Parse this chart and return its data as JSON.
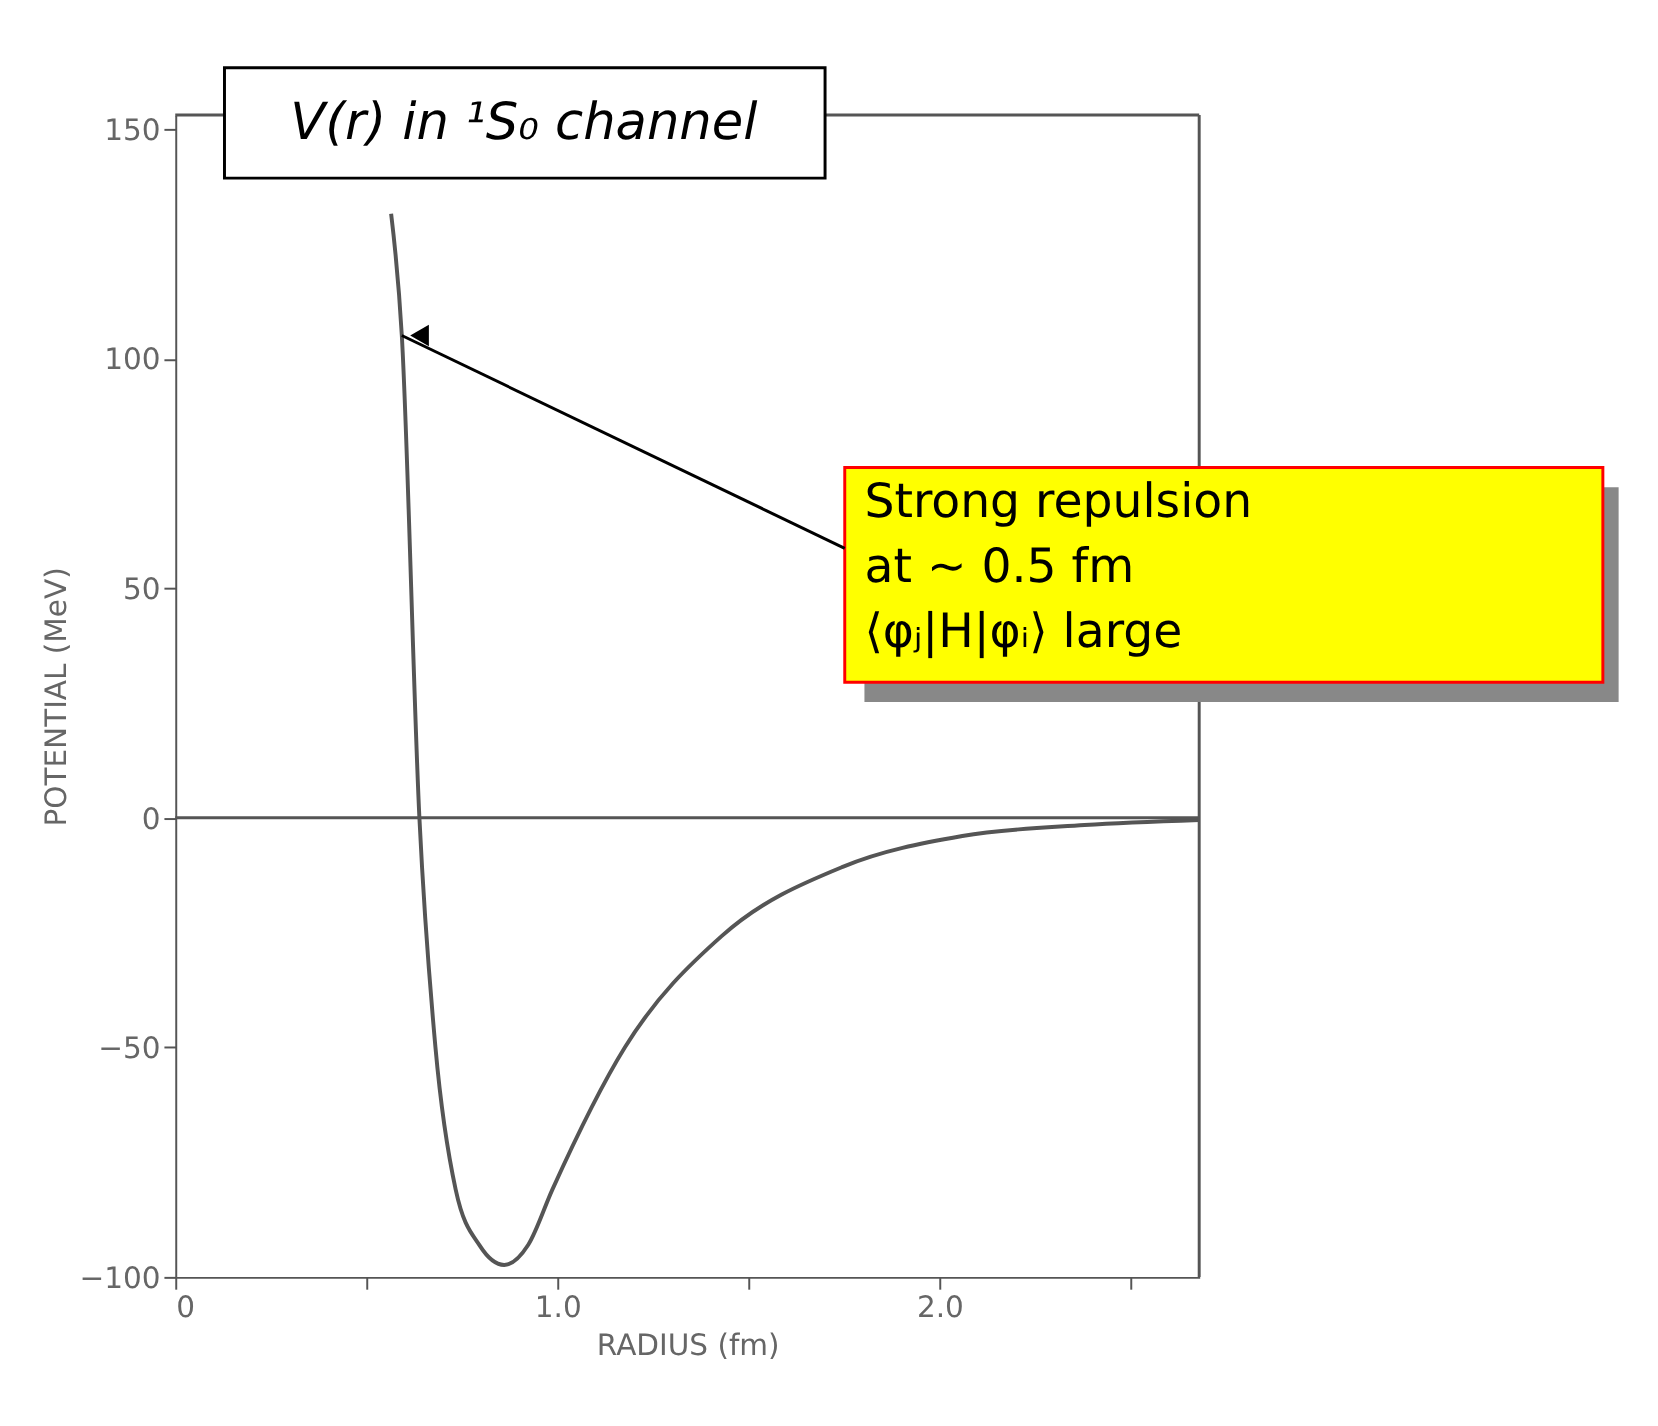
{
  "chart_data": {
    "type": "line",
    "title": "V(r) in ¹S₀ channel",
    "xlabel": "RADIUS (fm)",
    "ylabel": "POTENTIAL (MeV)",
    "x": [
      0.565,
      0.593,
      0.639,
      0.681,
      0.734,
      0.797,
      0.861,
      0.924,
      0.987,
      1.177,
      1.43,
      1.747,
      2.06,
      2.38,
      2.68
    ],
    "series": [
      {
        "color": "#555555",
        "values": [
          131.5,
          105,
          0,
          -50,
          -81,
          -93.2,
          -97.4,
          -93,
          -81,
          -50,
          -25.8,
          -10.7,
          -4,
          -1.6,
          -0.5
        ]
      }
    ],
    "xlim": [
      0,
      2.68
    ],
    "xticks": [
      0,
      {
        "value": 0.5,
        "label": null
      },
      {
        "value": 1,
        "label": "1.0"
      },
      {
        "value": 1.5,
        "label": null
      },
      {
        "value": 2,
        "label": "2.0"
      },
      {
        "value": 2.5,
        "label": null
      }
    ],
    "ylim": [
      -100,
      153
    ],
    "yticks": [
      -100,
      -50,
      0,
      50,
      100,
      150
    ],
    "ref_lines": [
      {
        "axis": "y",
        "value": 0,
        "color": "#555555"
      }
    ],
    "annotations": [
      {
        "text": "Strong repulsion\nat ~ 0.5 fm\n⟨φⱼ|H|φᵢ⟩ large",
        "x": 0.593,
        "y": 105
      }
    ]
  }
}
